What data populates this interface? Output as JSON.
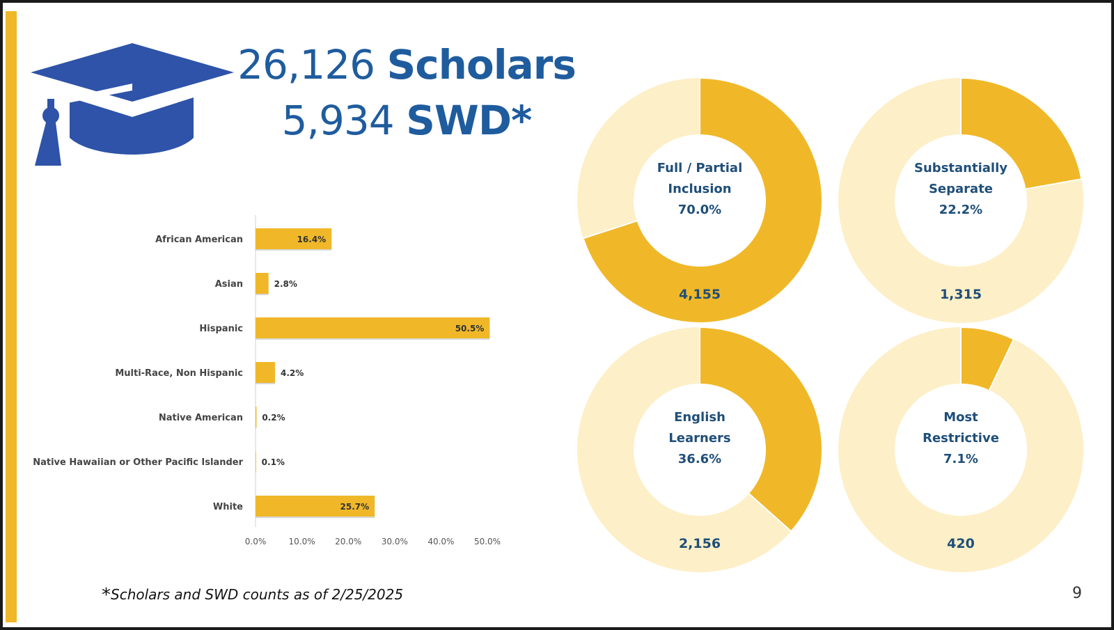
{
  "headline": {
    "scholars_count": "26,126",
    "scholars_word": "Scholars",
    "swd_count": "5,934",
    "swd_word": "SWD*"
  },
  "colors": {
    "accent_gold": "#F0B828",
    "light_gold": "#FDEFC7",
    "title_blue": "#1F5C9E",
    "label_navy": "#1F4E79",
    "cap_blue": "#2E53A8"
  },
  "icons": {
    "cap": "graduation-cap-icon"
  },
  "chart_data": [
    {
      "type": "bar",
      "orientation": "horizontal",
      "categories": [
        "African American",
        "Asian",
        "Hispanic",
        "Multi-Race, Non Hispanic",
        "Native American",
        "Native Hawaiian or Other Pacific Islander",
        "White"
      ],
      "values": [
        16.4,
        2.8,
        50.5,
        4.2,
        0.2,
        0.1,
        25.7
      ],
      "value_labels": [
        "16.4%",
        "2.8%",
        "50.5%",
        "4.2%",
        "0.2%",
        "0.1%",
        "25.7%"
      ],
      "xlim": [
        0,
        50
      ],
      "xticks": [
        "0.0%",
        "10.0%",
        "20.0%",
        "30.0%",
        "40.0%",
        "50.0%"
      ],
      "grid": false,
      "color": "#F0B828"
    },
    {
      "type": "pie",
      "donut": true,
      "charts": [
        {
          "label_lines": [
            "Full / Partial",
            "Inclusion"
          ],
          "percent_label": "70.0%",
          "value": 70.0,
          "count": "4,155"
        },
        {
          "label_lines": [
            "Substantially",
            "Separate"
          ],
          "percent_label": "22.2%",
          "value": 22.2,
          "count": "1,315"
        },
        {
          "label_lines": [
            "English",
            "Learners"
          ],
          "percent_label": "36.6%",
          "value": 36.6,
          "count": "2,156"
        },
        {
          "label_lines": [
            "Most",
            "Restrictive"
          ],
          "percent_label": "7.1%",
          "value": 7.1,
          "count": "420"
        }
      ]
    }
  ],
  "footnote": {
    "star": "*",
    "text": "Scholars and SWD counts as of 2/25/2025"
  },
  "page_number": "9"
}
